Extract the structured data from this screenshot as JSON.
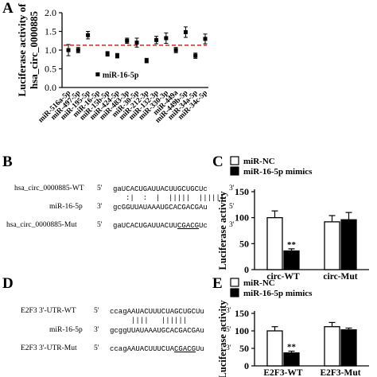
{
  "panels": {
    "A": "A",
    "B": "B",
    "C": "C",
    "D": "D",
    "E": "E"
  },
  "chart_data": [
    {
      "id": "A",
      "type": "scatter",
      "ylabel_line1": "Luciferase activity of",
      "ylabel_line2": "hsa_circ_0000885",
      "ylim": [
        0.0,
        2.0
      ],
      "yticks": [
        "0.0",
        "0.5",
        "1.0",
        "1.5",
        "2.0"
      ],
      "categories": [
        "miR-516a-5p",
        "miR-497-5p",
        "miR-195-5p",
        "miR-16-5p",
        "miR-15b-5p",
        "miR-424-5p",
        "miR-483-3p",
        "miR-30-5p",
        "miR-212-3p",
        "miR-132-3p",
        "miR-330-3p",
        "miR-449a",
        "miR-449b-5p",
        "miR-34a-5p",
        "miR-34c-5p"
      ],
      "values": [
        1.0,
        1.0,
        1.4,
        0.35,
        0.9,
        0.85,
        1.25,
        1.2,
        0.72,
        1.27,
        1.32,
        1.0,
        1.48,
        0.85,
        1.3
      ],
      "errors": [
        0.15,
        0.07,
        0.1,
        0.03,
        0.06,
        0.06,
        0.07,
        0.12,
        0.06,
        0.1,
        0.14,
        0.07,
        0.14,
        0.07,
        0.13
      ],
      "reference_line": 1.13,
      "annotation": "miR-16-5p"
    },
    {
      "id": "C",
      "type": "bar",
      "ylabel": "Luciferase activity",
      "ylim": [
        0,
        150
      ],
      "yticks": [
        "0",
        "50",
        "100",
        "150"
      ],
      "categories": [
        "circ-WT",
        "circ-Mut"
      ],
      "series": [
        {
          "name": "miR-NC",
          "values": [
            100,
            92
          ],
          "errors": [
            13,
            12
          ],
          "color": "#ffffff"
        },
        {
          "name": "miR-16-5p mimics",
          "values": [
            36,
            96
          ],
          "errors": [
            4,
            14
          ],
          "color": "#000000"
        }
      ],
      "significance": "**"
    },
    {
      "id": "E",
      "type": "bar",
      "ylabel": "Luciferase activity",
      "ylim": [
        0,
        150
      ],
      "yticks": [
        "0",
        "50",
        "100",
        "150"
      ],
      "categories": [
        "E2F3-WT",
        "E2F3-Mut"
      ],
      "series": [
        {
          "name": "miR-NC",
          "values": [
            100,
            112
          ],
          "errors": [
            12,
            12
          ],
          "color": "#ffffff"
        },
        {
          "name": "miR-16-5p mimics",
          "values": [
            37,
            103
          ],
          "errors": [
            5,
            5
          ],
          "color": "#000000"
        }
      ],
      "significance": "**"
    }
  ],
  "seqB": {
    "wt_label": "hsa_circ_0000885-WT",
    "wt_end5": "5'",
    "wt_seq": "gaUCACUGAUUACUUGCUGCUc",
    "wt_end3": "3'",
    "pairs": ":|  :  |  |||||  ||||||",
    "mir_label": "miR-16-5p",
    "mir_end5": "3'",
    "mir_seq": "gcGGUUAUAAAUGCACGACGAu",
    "mir_end3": "5'",
    "mut_label": "hsa_circ_0000885-Mut",
    "mut_end5": "5'",
    "mut_seq_a": "gaUCACUGAUUACUU",
    "mut_seq_b": "CGACG",
    "mut_seq_c": "Uc",
    "mut_end3": "3'"
  },
  "seqD": {
    "wt_label": "E2F3 3'-UTR-WT",
    "wt_end5": "5'",
    "wt_seq": "ccagAAUACUUUCUAGCUGCUu",
    "wt_end3": "3'",
    "pairs": "||||   ||||||",
    "mir_label": "miR-16-5p",
    "mir_end5": "3'",
    "mir_seq": "gcggUUAUAAAUGCACGACGAu",
    "mir_end3": "5'",
    "mut_label": "E2F3 3'-UTR-Mut",
    "mut_end5": "5'",
    "mut_seq_a": "ccagAAUACUUUCUA",
    "mut_seq_b": "CGACG",
    "mut_seq_c": "Uu",
    "mut_end3": "3'"
  }
}
